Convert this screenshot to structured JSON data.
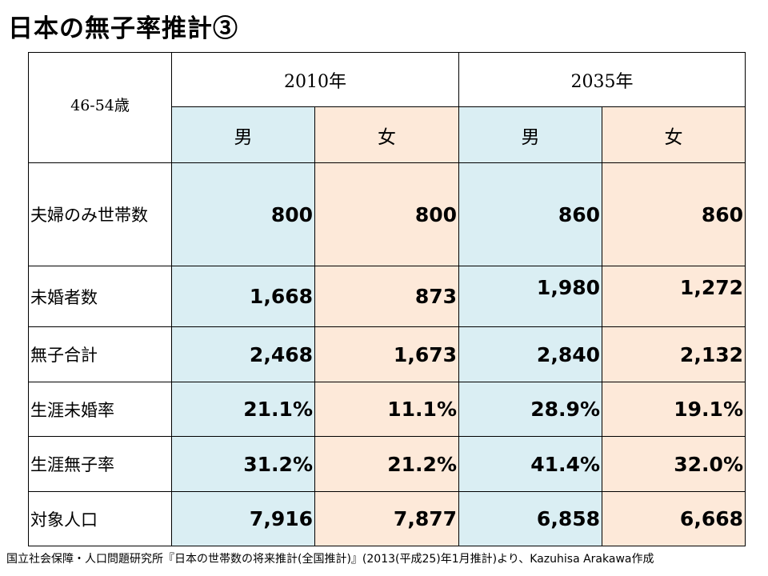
{
  "title": "日本の無子率推計③",
  "table": {
    "corner_label": "46-54歳",
    "years": [
      "2010年",
      "2035年"
    ],
    "sexes": [
      "男",
      "女",
      "男",
      "女"
    ],
    "rows": [
      {
        "label": "夫婦のみ世帯数",
        "values": [
          "800",
          "800",
          "860",
          "860"
        ]
      },
      {
        "label": "未婚者数",
        "values": [
          "1,668",
          "873",
          "1,980",
          "1,272"
        ]
      },
      {
        "label": "無子合計",
        "values": [
          "2,468",
          "1,673",
          "2,840",
          "2,132"
        ]
      },
      {
        "label": "生涯未婚率",
        "values": [
          "21.1%",
          "11.1%",
          "28.9%",
          "19.1%"
        ]
      },
      {
        "label": "生涯無子率",
        "values": [
          "31.2%",
          "21.2%",
          "41.4%",
          "32.0%"
        ]
      },
      {
        "label": "対象人口",
        "values": [
          "7,916",
          "7,877",
          "6,858",
          "6,668"
        ]
      }
    ]
  },
  "colors": {
    "male_fill": "#daeef3",
    "female_fill": "#fde9d9"
  },
  "footer": "国立社会保障・人口問題研究所『日本の世帯数の将来推計(全国推計)』(2013(平成25)年1月推計)より、Kazuhisa Arakawa作成"
}
